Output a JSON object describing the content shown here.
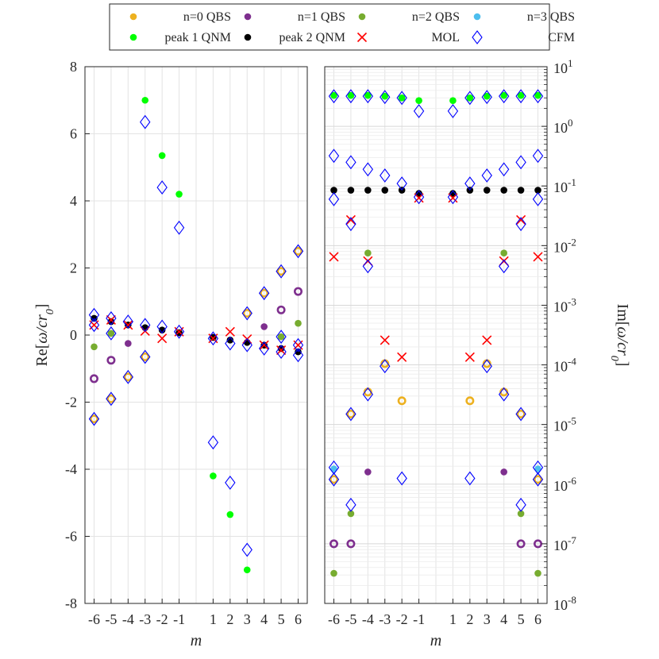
{
  "chart_data": {
    "type": "scatter",
    "legend": {
      "placement": "top",
      "entries": [
        {
          "key": "n0",
          "label": "n=0 QBS",
          "marker": "dot",
          "color": "#EDB120"
        },
        {
          "key": "n1",
          "label": "n=1 QBS",
          "marker": "dot",
          "color": "#7E2F8E"
        },
        {
          "key": "n2",
          "label": "n=2 QBS",
          "marker": "dot",
          "color": "#77AC30"
        },
        {
          "key": "n3",
          "label": "n=3 QBS",
          "marker": "dot",
          "color": "#4DBEEE"
        },
        {
          "key": "p1",
          "label": "peak 1 QNM",
          "marker": "dot",
          "color": "#00FF00"
        },
        {
          "key": "p2",
          "label": "peak 2 QNM",
          "marker": "dot",
          "color": "#000000"
        },
        {
          "key": "mol",
          "label": "MOL",
          "marker": "x",
          "color": "#FF0000"
        },
        {
          "key": "cfm",
          "label": "CFM",
          "marker": "diamond",
          "color": "#0000FF"
        }
      ]
    },
    "panels": [
      {
        "name": "left",
        "scale": "linear",
        "xlabel": "m",
        "ylabel_prefix": "Re[",
        "ylabel_var": "ω/cr",
        "ylabel_sub": "0",
        "ylabel_suffix": "]",
        "ylabel_side": "left",
        "ylim": [
          -8,
          8
        ],
        "yticks": [
          "-8",
          "-6",
          "-4",
          "-2",
          "0",
          "2",
          "4",
          "6",
          "8"
        ],
        "xticks": [
          "-6",
          "-5",
          "-4",
          "-3",
          "-2",
          "-1",
          "1",
          "2",
          "3",
          "4",
          "5",
          "6"
        ],
        "series": [
          {
            "key": "n0",
            "ring": [
              [
                -6,
                -2.5
              ],
              [
                -5,
                -1.9
              ],
              [
                -4,
                -1.25
              ],
              [
                -3,
                -0.65
              ],
              [
                3,
                0.65
              ],
              [
                4,
                1.25
              ],
              [
                5,
                1.9
              ],
              [
                6,
                2.5
              ]
            ],
            "dot": []
          },
          {
            "key": "n1",
            "ring": [
              [
                -6,
                -1.3
              ],
              [
                -5,
                -0.75
              ],
              [
                6,
                1.3
              ],
              [
                5,
                0.75
              ]
            ],
            "dot": [
              [
                -4,
                -0.25
              ],
              [
                4,
                0.25
              ]
            ]
          },
          {
            "key": "n2",
            "ring": [],
            "dot": [
              [
                -6,
                -0.35
              ],
              [
                -5,
                0.05
              ],
              [
                5,
                -0.05
              ],
              [
                6,
                0.35
              ]
            ]
          },
          {
            "key": "n3",
            "ring": [],
            "dot": []
          },
          {
            "key": "p1",
            "ring": [],
            "dot": [
              [
                -3,
                7.0
              ],
              [
                -2,
                5.35
              ],
              [
                -1,
                4.2
              ],
              [
                1,
                -4.2
              ],
              [
                2,
                -5.35
              ],
              [
                3,
                -7.0
              ]
            ]
          },
          {
            "key": "p2",
            "ring": [],
            "dot": [
              [
                -6,
                0.5
              ],
              [
                -5,
                0.4
              ],
              [
                -4,
                0.3
              ],
              [
                -3,
                0.22
              ],
              [
                -2,
                0.15
              ],
              [
                -1,
                0.07
              ],
              [
                1,
                -0.07
              ],
              [
                2,
                -0.15
              ],
              [
                3,
                -0.22
              ],
              [
                4,
                -0.3
              ],
              [
                5,
                -0.4
              ],
              [
                6,
                -0.5
              ]
            ]
          },
          {
            "key": "mol",
            "ring": [],
            "dot": [
              [
                -6,
                0.3
              ],
              [
                -5,
                0.45
              ],
              [
                -4,
                0.3
              ],
              [
                -3,
                0.12
              ],
              [
                -2,
                -0.1
              ],
              [
                -1,
                0.1
              ],
              [
                1,
                -0.1
              ],
              [
                2,
                0.1
              ],
              [
                3,
                -0.12
              ],
              [
                4,
                -0.3
              ],
              [
                5,
                -0.45
              ],
              [
                6,
                -0.3
              ]
            ]
          },
          {
            "key": "cfm",
            "ring": [],
            "dot": [
              [
                -6,
                0.6
              ],
              [
                -6,
                0.3
              ],
              [
                -6,
                -2.5
              ],
              [
                -5,
                0.5
              ],
              [
                -5,
                0.05
              ],
              [
                -5,
                -1.9
              ],
              [
                -4,
                0.4
              ],
              [
                -4,
                -1.25
              ],
              [
                -3,
                6.35
              ],
              [
                -3,
                0.3
              ],
              [
                -3,
                -0.65
              ],
              [
                -2,
                4.4
              ],
              [
                -2,
                0.25
              ],
              [
                -1,
                3.2
              ],
              [
                -1,
                0.1
              ],
              [
                1,
                -3.2
              ],
              [
                1,
                -0.1
              ],
              [
                2,
                -4.4
              ],
              [
                2,
                -0.25
              ],
              [
                3,
                -6.4
              ],
              [
                3,
                -0.3
              ],
              [
                3,
                0.65
              ],
              [
                4,
                -0.4
              ],
              [
                4,
                1.25
              ],
              [
                5,
                -0.5
              ],
              [
                5,
                -0.05
              ],
              [
                5,
                1.9
              ],
              [
                6,
                -0.6
              ],
              [
                6,
                -0.3
              ],
              [
                6,
                2.5
              ]
            ]
          }
        ]
      },
      {
        "name": "right",
        "scale": "log",
        "xlabel": "m",
        "ylabel_prefix": "Im[",
        "ylabel_var": "ω/cr",
        "ylabel_sub": "0",
        "ylabel_suffix": "]",
        "ylabel_side": "right",
        "ylim": [
          1e-08,
          10
        ],
        "yticks": [
          {
            "base": "10",
            "exp": "-8"
          },
          {
            "base": "10",
            "exp": "-7"
          },
          {
            "base": "10",
            "exp": "-6"
          },
          {
            "base": "10",
            "exp": "-5"
          },
          {
            "base": "10",
            "exp": "-4"
          },
          {
            "base": "10",
            "exp": "-3"
          },
          {
            "base": "10",
            "exp": "-2"
          },
          {
            "base": "10",
            "exp": "-1"
          },
          {
            "base": "10",
            "exp": "0"
          },
          {
            "base": "10",
            "exp": "1"
          }
        ],
        "xticks": [
          "-6",
          "-5",
          "-4",
          "-3",
          "-2",
          "-1",
          "1",
          "2",
          "3",
          "4",
          "5",
          "6"
        ],
        "series": [
          {
            "key": "n0",
            "ring": [
              [
                -6,
                1.2e-06
              ],
              [
                -5,
                1.5e-05
              ],
              [
                -4,
                3.5e-05
              ],
              [
                -3,
                0.000105
              ],
              [
                -2,
                2.5e-05
              ],
              [
                2,
                2.5e-05
              ],
              [
                3,
                0.000105
              ],
              [
                4,
                3.5e-05
              ],
              [
                5,
                1.5e-05
              ],
              [
                6,
                1.2e-06
              ]
            ],
            "dot": []
          },
          {
            "key": "n1",
            "ring": [
              [
                -6,
                1e-07
              ],
              [
                -5,
                1e-07
              ],
              [
                5,
                1e-07
              ],
              [
                6,
                1e-07
              ]
            ],
            "dot": [
              [
                -4,
                1.6e-06
              ],
              [
                4,
                1.6e-06
              ]
            ]
          },
          {
            "key": "n2",
            "ring": [],
            "dot": [
              [
                -6,
                3.2e-08
              ],
              [
                -5,
                3.2e-07
              ],
              [
                -4,
                0.0075
              ],
              [
                4,
                0.0075
              ],
              [
                5,
                3.2e-07
              ],
              [
                6,
                3.2e-08
              ]
            ]
          },
          {
            "key": "n3",
            "ring": [],
            "dot": [
              [
                -6,
                1.8e-06
              ],
              [
                6,
                1.8e-06
              ]
            ]
          },
          {
            "key": "p1",
            "ring": [],
            "dot": [
              [
                -6,
                3.3
              ],
              [
                -5,
                3.3
              ],
              [
                -4,
                3.3
              ],
              [
                -3,
                3.2
              ],
              [
                -2,
                3.0
              ],
              [
                -1,
                2.7
              ],
              [
                1,
                2.7
              ],
              [
                2,
                3.0
              ],
              [
                3,
                3.2
              ],
              [
                4,
                3.3
              ],
              [
                5,
                3.3
              ],
              [
                6,
                3.3
              ]
            ]
          },
          {
            "key": "p2",
            "ring": [],
            "dot": [
              [
                -6,
                0.085
              ],
              [
                -5,
                0.085
              ],
              [
                -4,
                0.085
              ],
              [
                -3,
                0.085
              ],
              [
                -2,
                0.085
              ],
              [
                -1,
                0.075
              ],
              [
                1,
                0.075
              ],
              [
                2,
                0.085
              ],
              [
                3,
                0.085
              ],
              [
                4,
                0.085
              ],
              [
                5,
                0.085
              ],
              [
                6,
                0.085
              ]
            ]
          },
          {
            "key": "mol",
            "ring": [],
            "dot": [
              [
                -6,
                0.0065
              ],
              [
                -5,
                0.027
              ],
              [
                -4,
                0.0055
              ],
              [
                -3,
                0.00026
              ],
              [
                -2,
                0.000135
              ],
              [
                -1,
                0.063
              ],
              [
                1,
                0.063
              ],
              [
                2,
                0.000135
              ],
              [
                3,
                0.00026
              ],
              [
                4,
                0.0055
              ],
              [
                5,
                0.027
              ],
              [
                6,
                0.0065
              ]
            ]
          },
          {
            "key": "cfm",
            "ring": [],
            "dot": [
              [
                -6,
                3.2
              ],
              [
                -6,
                0.32
              ],
              [
                -6,
                0.06
              ],
              [
                -6,
                1.9e-06
              ],
              [
                -6,
                1.2e-06
              ],
              [
                -5,
                3.2
              ],
              [
                -5,
                0.25
              ],
              [
                -5,
                0.023
              ],
              [
                -5,
                1.5e-05
              ],
              [
                -5,
                4.5e-07
              ],
              [
                -4,
                3.2
              ],
              [
                -4,
                0.19
              ],
              [
                -4,
                0.0045
              ],
              [
                -4,
                3.2e-05
              ],
              [
                -3,
                3.1
              ],
              [
                -3,
                0.15
              ],
              [
                -3,
                9.5e-05
              ],
              [
                -2,
                3.0
              ],
              [
                -2,
                0.11
              ],
              [
                -2,
                1.25e-06
              ],
              [
                -1,
                1.8
              ],
              [
                -1,
                0.065
              ],
              [
                1,
                1.8
              ],
              [
                1,
                0.065
              ],
              [
                2,
                3.0
              ],
              [
                2,
                0.11
              ],
              [
                2,
                1.25e-06
              ],
              [
                3,
                3.1
              ],
              [
                3,
                0.15
              ],
              [
                3,
                9.5e-05
              ],
              [
                4,
                3.2
              ],
              [
                4,
                0.19
              ],
              [
                4,
                0.0045
              ],
              [
                4,
                3.2e-05
              ],
              [
                5,
                3.2
              ],
              [
                5,
                0.25
              ],
              [
                5,
                0.023
              ],
              [
                5,
                1.5e-05
              ],
              [
                5,
                4.5e-07
              ],
              [
                6,
                3.2
              ],
              [
                6,
                0.32
              ],
              [
                6,
                0.06
              ],
              [
                6,
                1.9e-06
              ],
              [
                6,
                1.2e-06
              ]
            ]
          }
        ]
      }
    ]
  }
}
